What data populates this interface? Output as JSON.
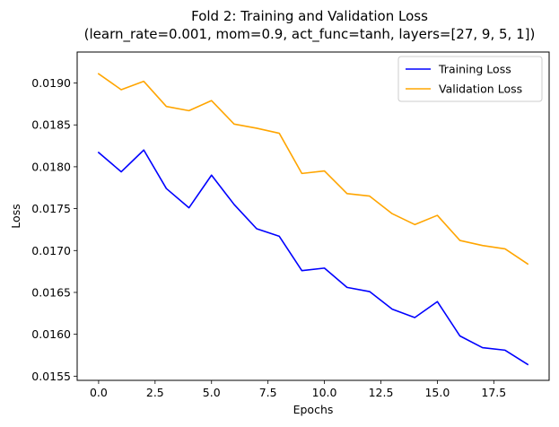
{
  "chart_data": {
    "type": "line",
    "title": "Fold 2: Training and Validation Loss",
    "subtitle": "(learn_rate=0.001, mom=0.9, act_func=tanh, layers=[27, 9, 5, 1])",
    "xlabel": "Epochs",
    "ylabel": "Loss",
    "x": [
      0,
      1,
      2,
      3,
      4,
      5,
      6,
      7,
      8,
      9,
      10,
      11,
      12,
      13,
      14,
      15,
      16,
      17,
      18,
      19
    ],
    "xlim": [
      -0.95,
      19.95
    ],
    "ylim": [
      0.01545,
      0.01937
    ],
    "xticks": [
      0.0,
      2.5,
      5.0,
      7.5,
      10.0,
      12.5,
      15.0,
      17.5
    ],
    "xtick_labels": [
      "0.0",
      "2.5",
      "5.0",
      "7.5",
      "10.0",
      "12.5",
      "15.0",
      "17.5"
    ],
    "yticks": [
      0.0155,
      0.016,
      0.0165,
      0.017,
      0.0175,
      0.018,
      0.0185,
      0.019
    ],
    "ytick_labels": [
      "0.0155",
      "0.0160",
      "0.0165",
      "0.0170",
      "0.0175",
      "0.0180",
      "0.0185",
      "0.0190"
    ],
    "grid": false,
    "legend_position": "top-right",
    "series": [
      {
        "name": "Training Loss",
        "color": "#0000ff",
        "values": [
          0.01817,
          0.01794,
          0.0182,
          0.01774,
          0.01751,
          0.0179,
          0.01755,
          0.01726,
          0.01717,
          0.01676,
          0.01679,
          0.01656,
          0.01651,
          0.0163,
          0.0162,
          0.01639,
          0.01598,
          0.01584,
          0.01581,
          0.01564
        ]
      },
      {
        "name": "Validation Loss",
        "color": "#ffa500",
        "values": [
          0.01911,
          0.01892,
          0.01902,
          0.01872,
          0.01867,
          0.01879,
          0.01851,
          0.01846,
          0.0184,
          0.01792,
          0.01795,
          0.01768,
          0.01765,
          0.01744,
          0.01731,
          0.01742,
          0.01712,
          0.01706,
          0.01702,
          0.01684
        ]
      }
    ]
  }
}
